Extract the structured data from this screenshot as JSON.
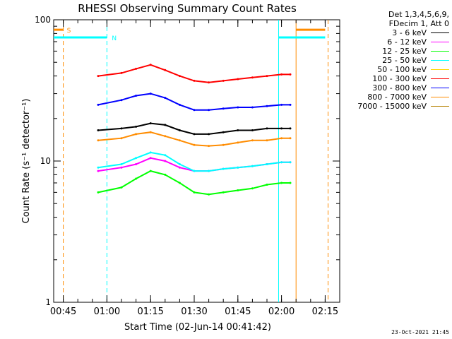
{
  "chart_data": {
    "type": "line",
    "title": "RHESSI Observing Summary Count Rates",
    "xlabel": "Start Time (02-Jun-14 00:41:42)",
    "ylabel": "Count Rate (s⁻¹ detector⁻¹)",
    "yscale": "log",
    "ylim": [
      1,
      100
    ],
    "xlim": [
      "00:41:42",
      "02:20:00"
    ],
    "x_ticks": [
      "00:45",
      "01:00",
      "01:15",
      "01:30",
      "01:45",
      "02:00",
      "02:15"
    ],
    "y_ticks": [
      "1",
      "10",
      "100"
    ],
    "grid": false,
    "legend_position": "right",
    "legend_header": [
      "Det 1,3,4,5,6,9,",
      "FDecim 1, Att 0"
    ],
    "x": [
      "00:57",
      "01:05",
      "01:10",
      "01:15",
      "01:20",
      "01:25",
      "01:30",
      "01:35",
      "01:40",
      "01:45",
      "01:50",
      "01:55",
      "02:00",
      "02:03"
    ],
    "series": [
      {
        "name": "3 - 6 keV",
        "color": "#000000",
        "values": [
          16.5,
          17,
          17.5,
          18.5,
          18,
          16.5,
          15.5,
          15.5,
          16,
          16.5,
          16.5,
          17,
          17,
          17
        ]
      },
      {
        "name": "6 - 12 keV",
        "color": "#ff00ff",
        "values": [
          8.5,
          9,
          9.5,
          10.5,
          10,
          9,
          8.5,
          8.5,
          8.8,
          9,
          9.2,
          9.5,
          9.8,
          9.8
        ]
      },
      {
        "name": "12 - 25 keV",
        "color": "#00ff00",
        "values": [
          6,
          6.5,
          7.5,
          8.5,
          8,
          7,
          6,
          5.8,
          6,
          6.2,
          6.4,
          6.8,
          7,
          7
        ]
      },
      {
        "name": "25 - 50 keV",
        "color": "#00ffff",
        "values": [
          9,
          9.5,
          10.5,
          11.5,
          11,
          9.5,
          8.5,
          8.5,
          8.8,
          9,
          9.2,
          9.5,
          9.8,
          9.8
        ]
      },
      {
        "name": "50 - 100 keV",
        "color": "#ffd700",
        "values": [
          null,
          null,
          null,
          null,
          null,
          null,
          null,
          null,
          null,
          null,
          null,
          null,
          null,
          null
        ]
      },
      {
        "name": "100 - 300 keV",
        "color": "#ff0000",
        "values": [
          40,
          42,
          45,
          48,
          44,
          40,
          37,
          36,
          37,
          38,
          39,
          40,
          41,
          41
        ]
      },
      {
        "name": "300 - 800 keV",
        "color": "#0000ff",
        "values": [
          25,
          27,
          29,
          30,
          28,
          25,
          23,
          23,
          23.5,
          24,
          24,
          24.5,
          25,
          25
        ]
      },
      {
        "name": "800 - 7000 keV",
        "color": "#ff8c00",
        "values": [
          14,
          14.5,
          15.5,
          16,
          15,
          14,
          13,
          12.8,
          13,
          13.5,
          14,
          14,
          14.5,
          14.5
        ]
      },
      {
        "name": "7000 - 15000 keV",
        "color": "#b8860b",
        "values": [
          null,
          null,
          null,
          null,
          null,
          null,
          null,
          null,
          null,
          null,
          null,
          null,
          null,
          null
        ]
      }
    ],
    "attenuator_state": {
      "label": "S",
      "color": "#ff8c00",
      "value": 85,
      "intervals": [
        [
          "00:41:42",
          "00:45"
        ],
        [
          "02:05",
          "02:15"
        ]
      ]
    },
    "night_state": {
      "label": "N",
      "color": "#00ffff",
      "value": 75,
      "intervals": [
        [
          "00:41:42",
          "01:00"
        ],
        [
          "01:59",
          "02:15"
        ]
      ]
    },
    "markers": [
      {
        "time": "00:45",
        "color": "#ff8c00",
        "style": "dashed"
      },
      {
        "time": "01:00",
        "color": "#00ffff",
        "style": "dashed"
      },
      {
        "time": "01:59",
        "color": "#00ffff",
        "style": "solid"
      },
      {
        "time": "02:05",
        "color": "#ff8c00",
        "style": "solid"
      },
      {
        "time": "02:16",
        "color": "#ff8c00",
        "style": "dashed"
      }
    ]
  },
  "footer": {
    "timestamp": "23-Oct-2021 21:45"
  }
}
